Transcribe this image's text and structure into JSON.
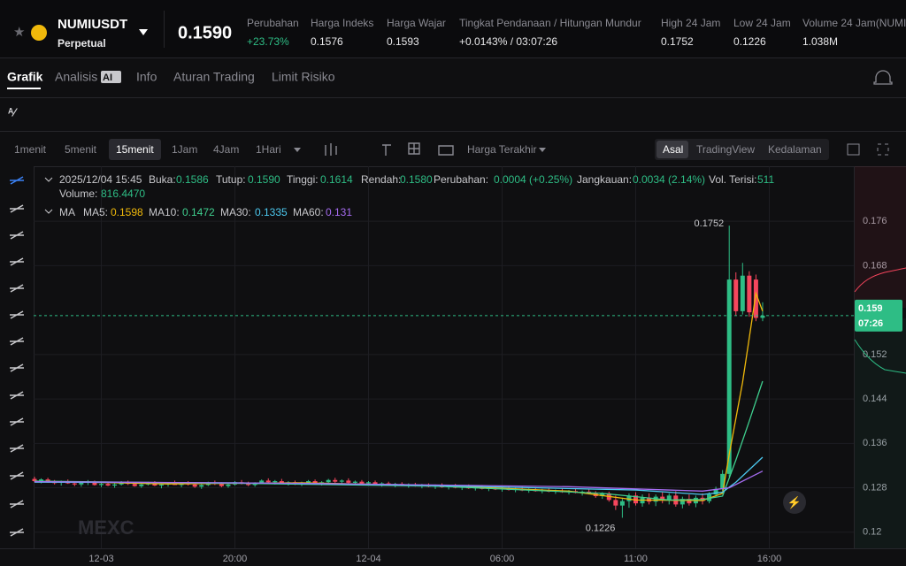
{
  "header": {
    "symbol": "NUMIUSDT",
    "contract": "Perpetual",
    "last_price": "0.1590",
    "stats": [
      {
        "label": "Perubahan",
        "value": "+23.73%"
      },
      {
        "label": "Harga Indeks",
        "value": "0.1576"
      },
      {
        "label": "Harga Wajar",
        "value": "0.1593"
      },
      {
        "label": "Tingkat Pendanaan / Hitungan Mundur",
        "value": "+0.0143% / 03:07:26"
      },
      {
        "label": "High 24 Jam",
        "value": "0.1752"
      },
      {
        "label": "Low 24 Jam",
        "value": "0.1226"
      },
      {
        "label": "Volume 24 Jam(NUMI",
        "value": "1.038M"
      }
    ]
  },
  "tabs": [
    "Grafik",
    "Analisis",
    "AI",
    "Info",
    "Aturan Trading",
    "Limit Risiko"
  ],
  "intervals": [
    "1menit",
    "5menit",
    "15menit",
    "1Jam",
    "4Jam",
    "1Hari"
  ],
  "price_type": "Harga Terakhir",
  "views": [
    "Asal",
    "TradingView",
    "Kedalaman"
  ],
  "chart": {
    "info": [
      "2025/12/04 15:45",
      "Buka:",
      "0.1586",
      "Tutup:",
      "0.1590",
      "Tinggi:",
      "0.1614",
      "Rendah:",
      "0.1580",
      "Perubahan:",
      "0.0004 (+0.25%)",
      "Jangkauan:",
      "0.0034 (2.14%)",
      "Vol. Terisi:",
      "511"
    ],
    "volume": [
      "Volume:",
      "816.4470"
    ],
    "ma_label": "MA",
    "ma_lines": [
      {
        "name": "MA5:",
        "value": "0.1598",
        "color": "#f0b90b",
        "x": [
          0,
          20,
          40,
          60,
          80,
          90,
          100,
          103,
          104,
          106,
          108,
          109
        ],
        "values": [
          0.1292,
          0.1287,
          0.1289,
          0.1284,
          0.1274,
          0.1258,
          0.1257,
          0.127,
          0.134,
          0.147,
          0.163,
          0.1598
        ]
      },
      {
        "name": "MA10:",
        "value": "0.1472",
        "color": "#3fcf8e",
        "x": [
          0,
          30,
          60,
          85,
          95,
          100,
          103,
          105,
          107,
          109
        ],
        "values": [
          0.1292,
          0.1288,
          0.1283,
          0.127,
          0.1258,
          0.1259,
          0.1265,
          0.133,
          0.14,
          0.1472
        ]
      },
      {
        "name": "MA30:",
        "value": "0.1335",
        "color": "#4cc9f0",
        "x": [
          0,
          30,
          60,
          90,
          100,
          103,
          105,
          109
        ],
        "values": [
          0.129,
          0.1289,
          0.1284,
          0.1276,
          0.1268,
          0.1272,
          0.129,
          0.1335
        ]
      },
      {
        "name": "MA60:",
        "value": "0.131",
        "color": "#a56cf0",
        "x": [
          0,
          40,
          80,
          100,
          104,
          109
        ],
        "values": [
          0.1291,
          0.1288,
          0.1282,
          0.1274,
          0.128,
          0.131
        ]
      }
    ],
    "ylim": [
      0.1171,
      0.1859
    ],
    "yticks": [
      0.176,
      0.168,
      0.152,
      0.144,
      0.136,
      0.128,
      0.12
    ],
    "xticks": [
      {
        "value": 10,
        "label": "12-03"
      },
      {
        "value": 30,
        "label": "20:00"
      },
      {
        "value": 50,
        "label": "12-04"
      },
      {
        "value": 70,
        "label": "06:00"
      },
      {
        "value": 90,
        "label": "11:00"
      },
      {
        "value": 110,
        "label": "16:00"
      }
    ],
    "countdown": "07:26",
    "watermark": "MEXC",
    "candles": [
      [
        0.1296,
        0.13,
        0.129,
        0.1292
      ],
      [
        0.1292,
        0.1297,
        0.1288,
        0.1295
      ],
      [
        0.1295,
        0.1298,
        0.1289,
        0.129
      ],
      [
        0.129,
        0.1294,
        0.1286,
        0.1289
      ],
      [
        0.1289,
        0.1293,
        0.1284,
        0.1291
      ],
      [
        0.1291,
        0.1295,
        0.1287,
        0.1288
      ],
      [
        0.1288,
        0.1292,
        0.1283,
        0.1286
      ],
      [
        0.1286,
        0.129,
        0.1282,
        0.1289
      ],
      [
        0.1289,
        0.1294,
        0.1285,
        0.1291
      ],
      [
        0.1291,
        0.1293,
        0.1284,
        0.1285
      ],
      [
        0.1285,
        0.1289,
        0.1281,
        0.1287
      ],
      [
        0.1287,
        0.1291,
        0.1283,
        0.1284
      ],
      [
        0.1284,
        0.1288,
        0.128,
        0.1286
      ],
      [
        0.1286,
        0.1292,
        0.1284,
        0.129
      ],
      [
        0.129,
        0.1293,
        0.1285,
        0.1287
      ],
      [
        0.1287,
        0.129,
        0.1282,
        0.1283
      ],
      [
        0.1283,
        0.1288,
        0.128,
        0.1286
      ],
      [
        0.1286,
        0.1291,
        0.1284,
        0.1289
      ],
      [
        0.1289,
        0.1292,
        0.1283,
        0.1284
      ],
      [
        0.1284,
        0.1288,
        0.1279,
        0.1286
      ],
      [
        0.1286,
        0.129,
        0.1282,
        0.1288
      ],
      [
        0.1288,
        0.1293,
        0.1285,
        0.1285
      ],
      [
        0.1285,
        0.1289,
        0.1281,
        0.1288
      ],
      [
        0.1288,
        0.1292,
        0.1284,
        0.1286
      ],
      [
        0.1286,
        0.129,
        0.128,
        0.1282
      ],
      [
        0.1282,
        0.1287,
        0.1278,
        0.1285
      ],
      [
        0.1285,
        0.1291,
        0.1283,
        0.1289
      ],
      [
        0.1289,
        0.1293,
        0.1285,
        0.1287
      ],
      [
        0.1287,
        0.129,
        0.1281,
        0.1283
      ],
      [
        0.1283,
        0.1288,
        0.128,
        0.1286
      ],
      [
        0.1286,
        0.1292,
        0.1284,
        0.129
      ],
      [
        0.129,
        0.1294,
        0.1286,
        0.1288
      ],
      [
        0.1288,
        0.1291,
        0.1283,
        0.1285
      ],
      [
        0.1285,
        0.129,
        0.1282,
        0.1289
      ],
      [
        0.1289,
        0.1295,
        0.1287,
        0.1293
      ],
      [
        0.1293,
        0.1297,
        0.1288,
        0.129
      ],
      [
        0.129,
        0.1294,
        0.1286,
        0.1292
      ],
      [
        0.1292,
        0.1296,
        0.1287,
        0.1288
      ],
      [
        0.1288,
        0.1292,
        0.1284,
        0.129
      ],
      [
        0.129,
        0.1293,
        0.1285,
        0.1287
      ],
      [
        0.1287,
        0.1291,
        0.1283,
        0.1289
      ],
      [
        0.1289,
        0.1294,
        0.1286,
        0.1292
      ],
      [
        0.1292,
        0.1295,
        0.1287,
        0.1288
      ],
      [
        0.1288,
        0.1292,
        0.1284,
        0.129
      ],
      [
        0.129,
        0.1296,
        0.1288,
        0.1294
      ],
      [
        0.1294,
        0.1298,
        0.1289,
        0.1291
      ],
      [
        0.1291,
        0.1295,
        0.1287,
        0.1293
      ],
      [
        0.1293,
        0.1297,
        0.1288,
        0.1289
      ],
      [
        0.1289,
        0.1293,
        0.1285,
        0.1291
      ],
      [
        0.1291,
        0.1294,
        0.1286,
        0.1288
      ],
      [
        0.1288,
        0.1292,
        0.1284,
        0.129
      ],
      [
        0.129,
        0.1293,
        0.1285,
        0.1286
      ],
      [
        0.1286,
        0.129,
        0.1282,
        0.1288
      ],
      [
        0.1288,
        0.1291,
        0.1284,
        0.1285
      ],
      [
        0.1285,
        0.1289,
        0.1281,
        0.1287
      ],
      [
        0.1287,
        0.129,
        0.1283,
        0.1284
      ],
      [
        0.1284,
        0.1288,
        0.128,
        0.1286
      ],
      [
        0.1286,
        0.1289,
        0.1282,
        0.1283
      ],
      [
        0.1283,
        0.1287,
        0.1279,
        0.1285
      ],
      [
        0.1285,
        0.1288,
        0.1281,
        0.1282
      ],
      [
        0.1282,
        0.1286,
        0.1278,
        0.1284
      ],
      [
        0.1284,
        0.1288,
        0.128,
        0.1281
      ],
      [
        0.1281,
        0.1285,
        0.1277,
        0.1283
      ],
      [
        0.1283,
        0.1287,
        0.1279,
        0.128
      ],
      [
        0.128,
        0.1284,
        0.1276,
        0.1282
      ],
      [
        0.1282,
        0.1286,
        0.1278,
        0.1279
      ],
      [
        0.1279,
        0.1283,
        0.1275,
        0.1281
      ],
      [
        0.1281,
        0.1285,
        0.1277,
        0.1278
      ],
      [
        0.1278,
        0.1282,
        0.1274,
        0.128
      ],
      [
        0.128,
        0.1284,
        0.1276,
        0.1277
      ],
      [
        0.1277,
        0.1281,
        0.1273,
        0.1279
      ],
      [
        0.1279,
        0.1283,
        0.1275,
        0.1276
      ],
      [
        0.1276,
        0.128,
        0.1272,
        0.1278
      ],
      [
        0.1278,
        0.1282,
        0.1274,
        0.1275
      ],
      [
        0.1275,
        0.1279,
        0.1271,
        0.1277
      ],
      [
        0.1277,
        0.1281,
        0.1273,
        0.1274
      ],
      [
        0.1274,
        0.1278,
        0.127,
        0.1276
      ],
      [
        0.1276,
        0.128,
        0.1272,
        0.1273
      ],
      [
        0.1273,
        0.1277,
        0.1269,
        0.1275
      ],
      [
        0.1275,
        0.1279,
        0.1271,
        0.1272
      ],
      [
        0.1272,
        0.1276,
        0.1268,
        0.1274
      ],
      [
        0.1274,
        0.1278,
        0.127,
        0.1271
      ],
      [
        0.1271,
        0.1275,
        0.1266,
        0.1273
      ],
      [
        0.1273,
        0.1277,
        0.1268,
        0.127
      ],
      [
        0.127,
        0.1274,
        0.1262,
        0.1265
      ],
      [
        0.1265,
        0.1272,
        0.126,
        0.127
      ],
      [
        0.127,
        0.1273,
        0.1255,
        0.1258
      ],
      [
        0.1258,
        0.1266,
        0.124,
        0.1248
      ],
      [
        0.1248,
        0.1262,
        0.1226,
        0.1256
      ],
      [
        0.1256,
        0.127,
        0.1244,
        0.1266
      ],
      [
        0.1266,
        0.1272,
        0.1248,
        0.1252
      ],
      [
        0.1252,
        0.1268,
        0.1246,
        0.1262
      ],
      [
        0.1262,
        0.127,
        0.125,
        0.1255
      ],
      [
        0.1255,
        0.1268,
        0.1247,
        0.1264
      ],
      [
        0.1264,
        0.1272,
        0.1252,
        0.1257
      ],
      [
        0.1257,
        0.127,
        0.125,
        0.1266
      ],
      [
        0.1266,
        0.1274,
        0.1246,
        0.125
      ],
      [
        0.125,
        0.1264,
        0.1243,
        0.126
      ],
      [
        0.126,
        0.1268,
        0.1248,
        0.1252
      ],
      [
        0.1252,
        0.1266,
        0.1245,
        0.1262
      ],
      [
        0.1262,
        0.127,
        0.125,
        0.1256
      ],
      [
        0.1256,
        0.1272,
        0.1252,
        0.1268
      ],
      [
        0.1268,
        0.1282,
        0.1264,
        0.1278
      ],
      [
        0.1278,
        0.1312,
        0.1274,
        0.1305
      ],
      [
        0.1305,
        0.1752,
        0.13,
        0.1655
      ],
      [
        0.1655,
        0.1668,
        0.159,
        0.1598
      ],
      [
        0.1598,
        0.1685,
        0.1592,
        0.1662
      ],
      [
        0.1662,
        0.167,
        0.1588,
        0.1596
      ],
      [
        0.1655,
        0.1664,
        0.158,
        0.1586
      ],
      [
        0.1586,
        0.1614,
        0.158,
        0.159
      ]
    ]
  }
}
